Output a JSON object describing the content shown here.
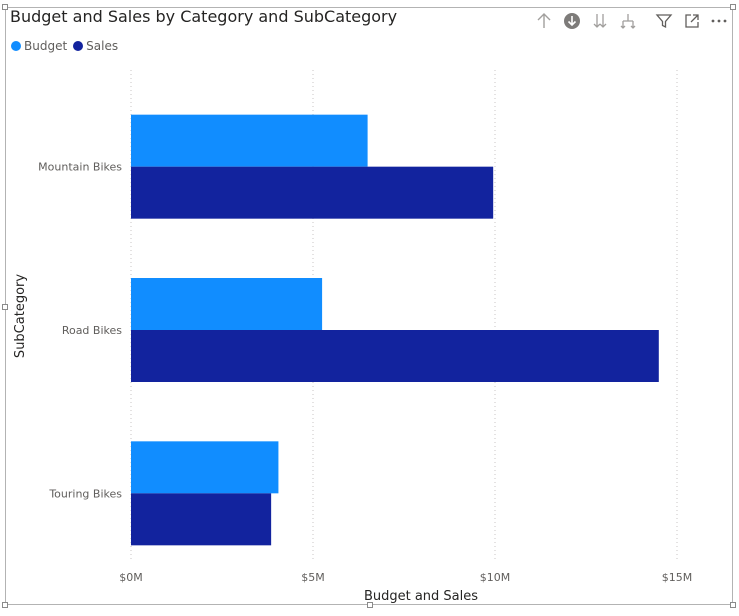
{
  "visual": {
    "title": "Budget and Sales by Category and SubCategory",
    "toolbar": [
      {
        "icon": "drill-up-icon"
      },
      {
        "icon": "drill-down-icon"
      },
      {
        "icon": "expand-next-level-icon"
      },
      {
        "icon": "expand-hierarchy-icon"
      },
      {
        "icon": "filter-icon"
      },
      {
        "icon": "focus-mode-icon"
      },
      {
        "icon": "more-options-icon"
      }
    ]
  },
  "legend": [
    {
      "label": "Budget",
      "color": "#118dff"
    },
    {
      "label": "Sales",
      "color": "#12239e"
    }
  ],
  "chart_data": {
    "type": "bar",
    "orientation": "horizontal",
    "title": "Budget and Sales by Category and SubCategory",
    "xlabel": "Budget and Sales",
    "ylabel": "SubCategory",
    "categories": [
      "Mountain Bikes",
      "Road Bikes",
      "Touring Bikes"
    ],
    "series": [
      {
        "name": "Budget",
        "color": "#118dff",
        "values": [
          6.5,
          5.25,
          4.05
        ]
      },
      {
        "name": "Sales",
        "color": "#12239e",
        "values": [
          9.95,
          14.5,
          3.85
        ]
      }
    ],
    "xlim": [
      0,
      15
    ],
    "xticks": [
      {
        "value": 0,
        "label": "$0M"
      },
      {
        "value": 5,
        "label": "$5M"
      },
      {
        "value": 10,
        "label": "$10M"
      },
      {
        "value": 15,
        "label": "$15M"
      }
    ],
    "legend_position": "top-left",
    "grid": "vertical dotted"
  }
}
